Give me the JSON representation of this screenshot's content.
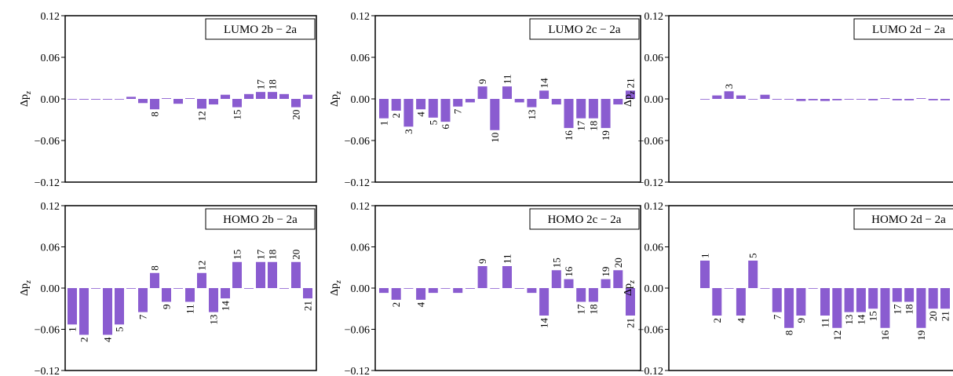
{
  "chart_data": [
    {
      "type": "bar",
      "title": "LUMO 2b − 2a",
      "color": "#8a5cd0",
      "ylabel": {
        "text": "Δp",
        "subscript": "z"
      },
      "ylim": [
        -0.12,
        0.12
      ],
      "yticks": [
        {
          "value": -0.12,
          "label": "−0.12"
        },
        {
          "value": -0.06,
          "label": "−0.06"
        },
        {
          "value": 0,
          "label": "0.00"
        },
        0.06,
        0.12
      ],
      "categories": [
        null,
        null,
        null,
        null,
        null,
        null,
        null,
        "8",
        null,
        null,
        null,
        "12",
        null,
        null,
        "15",
        null,
        "17",
        "18",
        null,
        "20",
        null
      ],
      "values": [
        0,
        -0.001,
        -0.001,
        -0.001,
        0,
        0.003,
        -0.006,
        -0.015,
        0.001,
        -0.007,
        0.001,
        -0.014,
        -0.008,
        0.006,
        -0.012,
        0.007,
        0.01,
        0.01,
        0.007,
        -0.012,
        0.006
      ]
    },
    {
      "type": "bar",
      "title": "LUMO 2c − 2a",
      "color": "#8a5cd0",
      "ylabel": {
        "text": "Δp",
        "subscript": "z"
      },
      "ylim": [
        -0.12,
        0.12
      ],
      "yticks": [
        {
          "value": -0.12,
          "label": "−0.12"
        },
        {
          "value": -0.06,
          "label": "−0.06"
        },
        {
          "value": 0,
          "label": "0.00"
        },
        0.06,
        0.12
      ],
      "categories": [
        "1",
        "2",
        "3",
        "4",
        "5",
        "6",
        "7",
        null,
        "9",
        "10",
        "11",
        null,
        "13",
        "14",
        null,
        "16",
        "17",
        "18",
        "19",
        null,
        "21"
      ],
      "values": [
        -0.028,
        -0.017,
        -0.04,
        -0.015,
        -0.027,
        -0.033,
        -0.011,
        -0.005,
        0.018,
        -0.045,
        0.018,
        -0.005,
        -0.012,
        0.012,
        -0.008,
        -0.042,
        -0.028,
        -0.028,
        -0.042,
        -0.008,
        0.012
      ]
    },
    {
      "type": "bar",
      "title": "LUMO 2d − 2a",
      "color": "#8a5cd0",
      "ylabel": {
        "text": "Δp",
        "subscript": "z"
      },
      "ylim": [
        -0.12,
        0.12
      ],
      "yticks": [
        {
          "value": -0.12,
          "label": "−0.12"
        },
        {
          "value": -0.06,
          "label": "−0.06"
        },
        {
          "value": 0,
          "label": "0.00"
        },
        0.06,
        0.12
      ],
      "categories": [
        null,
        null,
        "3",
        null,
        null,
        null,
        null,
        null,
        null,
        null,
        null,
        null,
        null,
        null,
        null,
        null,
        null,
        null,
        null,
        null,
        null
      ],
      "values": [
        0,
        0.005,
        0.011,
        0.005,
        0,
        0.006,
        -0.001,
        -0.001,
        -0.003,
        -0.002,
        -0.003,
        -0.002,
        -0.001,
        -0.001,
        -0.002,
        0.001,
        -0.002,
        -0.002,
        0.001,
        -0.002,
        -0.002
      ]
    },
    {
      "type": "bar",
      "title": "HOMO 2b − 2a",
      "color": "#8a5cd0",
      "ylabel": {
        "text": "Δp",
        "subscript": "z"
      },
      "ylim": [
        -0.12,
        0.12
      ],
      "yticks": [
        {
          "value": -0.12,
          "label": "−0.12"
        },
        {
          "value": -0.06,
          "label": "−0.06"
        },
        {
          "value": 0,
          "label": "0.00"
        },
        0.06,
        0.12
      ],
      "categories": [
        "1",
        "2",
        null,
        "4",
        "5",
        null,
        "7",
        "8",
        "9",
        null,
        "11",
        "12",
        "13",
        "14",
        "15",
        null,
        "17",
        "18",
        null,
        "20",
        "21"
      ],
      "values": [
        -0.053,
        -0.068,
        0,
        -0.068,
        -0.053,
        0,
        -0.035,
        0.022,
        -0.02,
        0,
        -0.02,
        0.022,
        -0.035,
        -0.015,
        0.038,
        0,
        0.038,
        0.038,
        0,
        0.038,
        -0.015
      ]
    },
    {
      "type": "bar",
      "title": "HOMO 2c − 2a",
      "color": "#8a5cd0",
      "ylabel": {
        "text": "Δp",
        "subscript": "z"
      },
      "ylim": [
        -0.12,
        0.12
      ],
      "yticks": [
        {
          "value": -0.12,
          "label": "−0.12"
        },
        {
          "value": -0.06,
          "label": "−0.06"
        },
        {
          "value": 0,
          "label": "0.00"
        },
        0.06,
        0.12
      ],
      "categories": [
        null,
        "2",
        null,
        "4",
        null,
        null,
        null,
        null,
        "9",
        null,
        "11",
        null,
        null,
        "14",
        "15",
        "16",
        "17",
        "18",
        "19",
        "20",
        "21"
      ],
      "values": [
        -0.007,
        -0.017,
        0,
        -0.017,
        -0.007,
        0,
        -0.007,
        -0.001,
        0.032,
        0,
        0.032,
        -0.001,
        -0.007,
        -0.04,
        0.026,
        0.013,
        -0.02,
        -0.02,
        0.013,
        0.026,
        -0.04
      ]
    },
    {
      "type": "bar",
      "title": "HOMO 2d − 2a",
      "color": "#8a5cd0",
      "ylabel": {
        "text": "Δp",
        "subscript": "z"
      },
      "ylim": [
        -0.12,
        0.12
      ],
      "yticks": [
        {
          "value": -0.12,
          "label": "−0.12"
        },
        {
          "value": -0.06,
          "label": "−0.06"
        },
        {
          "value": 0,
          "label": "0.00"
        },
        0.06,
        0.12
      ],
      "categories": [
        "1",
        "2",
        null,
        "4",
        "5",
        null,
        "7",
        "8",
        "9",
        null,
        "11",
        "12",
        "13",
        "14",
        "15",
        "16",
        "17",
        "18",
        "19",
        "20",
        "21"
      ],
      "values": [
        0.04,
        -0.04,
        0,
        -0.04,
        0.04,
        0,
        -0.035,
        -0.058,
        -0.04,
        0,
        -0.04,
        -0.058,
        -0.035,
        -0.035,
        -0.03,
        -0.058,
        -0.02,
        -0.02,
        -0.058,
        -0.03,
        -0.03
      ]
    }
  ]
}
